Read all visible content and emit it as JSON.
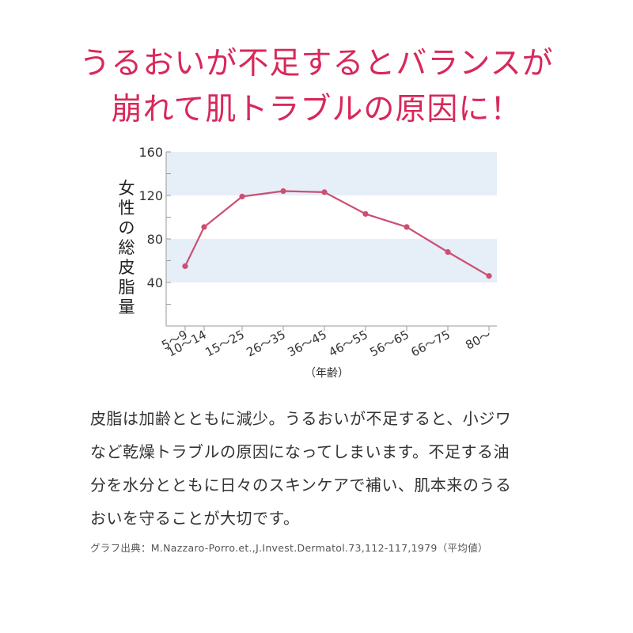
{
  "headline": {
    "line1": "うるおいが不足するとバランスが",
    "line2": "崩れて肌トラブルの原因に！"
  },
  "body_text": {
    "line1": "皮脂は加齢とともに減少。うるおいが不足すると、小ジワ",
    "line2": "など乾燥トラブルの原因になってしまいます。不足する油",
    "line3": "分を水分とともに日々のスキンケアで補い、肌本来のうる",
    "line4": "おいを守ることが大切です。"
  },
  "source": "グラフ出典：M.Nazzaro-Porro.et.,J.Invest.Dermatol.73,112-117,1979（平均値）",
  "chart_data": {
    "type": "line",
    "title": "",
    "ylabel": "女性の総皮脂量",
    "xlabel": "（年齢）",
    "ylim": [
      0,
      160
    ],
    "yticks": [
      40,
      80,
      120,
      160
    ],
    "categories": [
      "5〜9",
      "10〜14",
      "15〜25",
      "26〜35",
      "36〜45",
      "46〜55",
      "56〜65",
      "66〜75",
      "80〜"
    ],
    "values": [
      55,
      91,
      119,
      124,
      123,
      103,
      91,
      68,
      46
    ],
    "grid": false,
    "colors": {
      "line": "#cc4f72",
      "band": "#e6eef8",
      "axis": "#9a9a9a"
    }
  }
}
